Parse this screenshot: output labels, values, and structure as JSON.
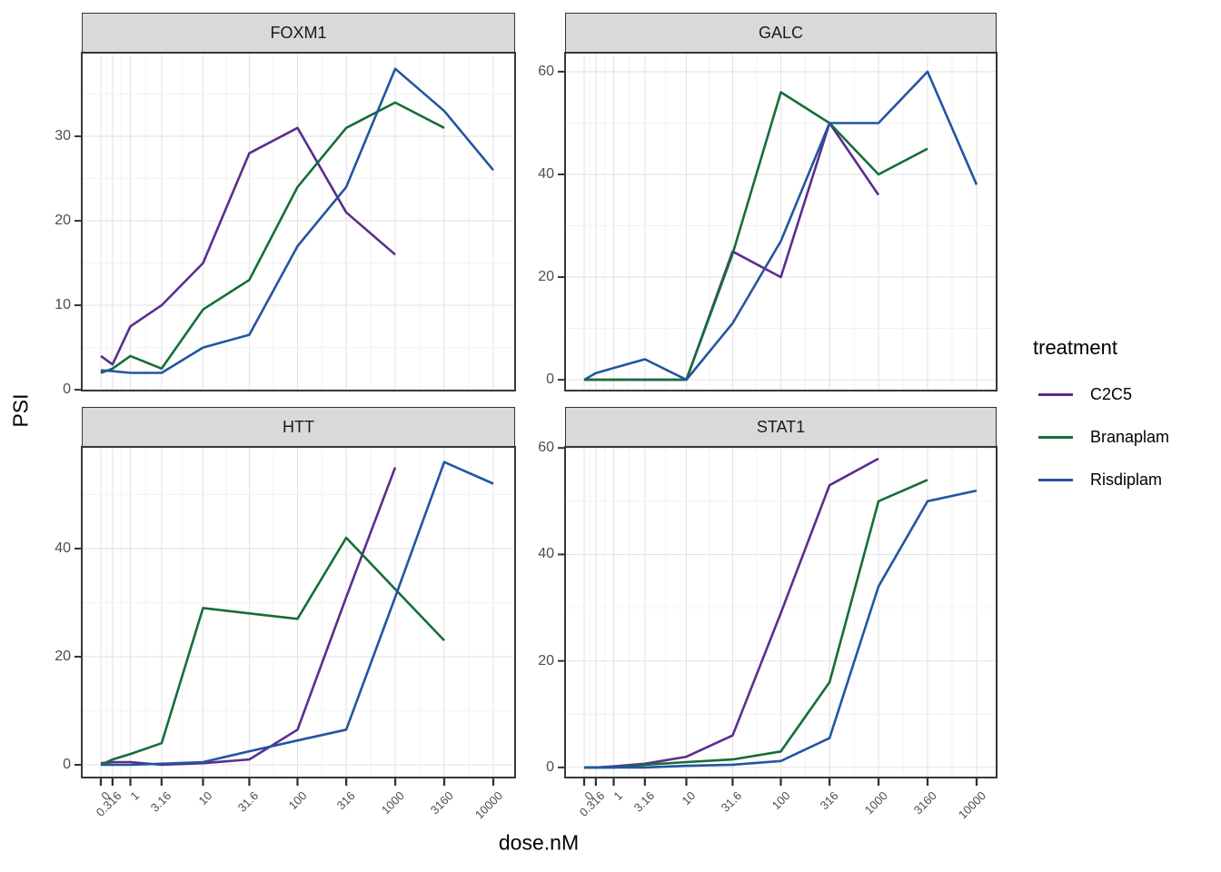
{
  "chart_data": {
    "type": "line",
    "facet_by": "gene",
    "x_transform": "log10(dose+1)",
    "xlabel": "dose.nM",
    "ylabel": "PSI",
    "x_tick_labels": [
      "0",
      "0.316",
      "1",
      "3.16",
      "10",
      "31.6",
      "100",
      "316",
      "1000",
      "3160",
      "10000"
    ],
    "x_tick_doses": [
      0,
      0.316,
      1,
      3.16,
      10,
      31.6,
      100,
      316,
      1000,
      3160,
      10000
    ],
    "grid": "on",
    "legend": {
      "title": "treatment",
      "position": "right",
      "items": [
        {
          "label": "C2C5",
          "color": "#5C2D8F"
        },
        {
          "label": "Branaplam",
          "color": "#156E38"
        },
        {
          "label": "Risdiplam",
          "color": "#2355A0"
        }
      ]
    },
    "panels": [
      {
        "title": "FOXM1",
        "ylim": [
          -0.1,
          39.9
        ],
        "yticks": [
          0,
          10,
          20,
          30
        ],
        "yminor": [
          5,
          15,
          25,
          35
        ],
        "series": [
          {
            "name": "C2C5",
            "color": "#5C2D8F",
            "doses": [
              0,
              0.316,
              1,
              3.16,
              10,
              31.6,
              100,
              316,
              1000
            ],
            "values": [
              4,
              3,
              7.5,
              10,
              15,
              28,
              31,
              21,
              16
            ]
          },
          {
            "name": "Branaplam",
            "color": "#156E38",
            "doses": [
              0,
              0.316,
              1,
              3.16,
              10,
              31.6,
              100,
              316,
              1000,
              3160
            ],
            "values": [
              2,
              2.5,
              4,
              2.5,
              9.5,
              13,
              24,
              31,
              34,
              31
            ]
          },
          {
            "name": "Risdiplam",
            "color": "#2355A0",
            "doses": [
              0,
              0.316,
              1,
              3.16,
              10,
              31.6,
              100,
              316,
              1000,
              3160,
              10000
            ],
            "values": [
              2.3,
              2.2,
              2,
              2,
              5,
              6.5,
              17,
              24,
              38,
              33,
              26
            ]
          }
        ]
      },
      {
        "title": "GALC",
        "ylim": [
          -2.1,
          63.7
        ],
        "yticks": [
          0,
          20,
          40,
          60
        ],
        "yminor": [
          10,
          30,
          50
        ],
        "series": [
          {
            "name": "C2C5",
            "color": "#5C2D8F",
            "doses": [
              0,
              0.316,
              1,
              3.16,
              10,
              31.6,
              100,
              316,
              1000
            ],
            "values": [
              0,
              0,
              0,
              0,
              0,
              25,
              20,
              50,
              36
            ]
          },
          {
            "name": "Branaplam",
            "color": "#156E38",
            "doses": [
              0,
              0.316,
              1,
              3.16,
              10,
              31.6,
              100,
              316,
              1000,
              3160
            ],
            "values": [
              0,
              0,
              0,
              0,
              0,
              24.5,
              56,
              50,
              40,
              45
            ]
          },
          {
            "name": "Risdiplam",
            "color": "#2355A0",
            "doses": [
              0,
              0.316,
              1,
              3.16,
              10,
              31.6,
              100,
              316,
              1000,
              3160,
              10000
            ],
            "values": [
              0,
              1.3,
              2.3,
              4,
              0,
              11,
              27,
              50,
              50,
              60,
              38
            ]
          }
        ]
      },
      {
        "title": "HTT",
        "ylim": [
          -2.35,
          58.8
        ],
        "yticks": [
          0,
          20,
          40
        ],
        "yminor": [
          10,
          30,
          50
        ],
        "series": [
          {
            "name": "C2C5",
            "color": "#5C2D8F",
            "doses": [
              0,
              0.316,
              1,
              3.16,
              10,
              31.6,
              100,
              316,
              1000
            ],
            "values": [
              0.3,
              0.5,
              0.5,
              0,
              0.3,
              1,
              6.5,
              31,
              55
            ]
          },
          {
            "name": "Branaplam",
            "color": "#156E38",
            "doses": [
              0,
              0.316,
              1,
              3.16,
              10,
              31.6,
              100,
              316,
              1000,
              3160
            ],
            "values": [
              0,
              1,
              2,
              4,
              29,
              28,
              27,
              42,
              32.5,
              23
            ]
          },
          {
            "name": "Risdiplam",
            "color": "#2355A0",
            "doses": [
              0,
              0.316,
              1,
              3.16,
              10,
              31.6,
              100,
              316,
              1000,
              3160,
              10000
            ],
            "values": [
              0,
              0,
              0,
              0.2,
              0.5,
              2.5,
              4.5,
              6.5,
              31,
              56,
              52
            ]
          }
        ]
      },
      {
        "title": "STAT1",
        "ylim": [
          -1.9,
          60.2
        ],
        "yticks": [
          0,
          20,
          40,
          60
        ],
        "yminor": [
          10,
          30,
          50
        ],
        "series": [
          {
            "name": "C2C5",
            "color": "#5C2D8F",
            "doses": [
              0,
              0.316,
              1,
              3.16,
              10,
              31.6,
              100,
              316,
              1000
            ],
            "values": [
              0,
              0,
              0.2,
              0.7,
              2,
              6,
              29,
              53,
              58
            ]
          },
          {
            "name": "Branaplam",
            "color": "#156E38",
            "doses": [
              0,
              0.316,
              1,
              3.16,
              10,
              31.6,
              100,
              316,
              1000,
              3160
            ],
            "values": [
              0,
              0,
              0,
              0.5,
              1,
              1.5,
              3,
              16,
              50,
              54
            ]
          },
          {
            "name": "Risdiplam",
            "color": "#2355A0",
            "doses": [
              0,
              0.316,
              1,
              3.16,
              10,
              31.6,
              100,
              316,
              1000,
              3160,
              10000
            ],
            "values": [
              0,
              0,
              0,
              0,
              0.3,
              0.5,
              1.2,
              5.5,
              34,
              50,
              52
            ]
          }
        ]
      }
    ],
    "style": {
      "panel_border_color": "#383838",
      "strip_bg": "#d9d9d9",
      "grid_major_color": "#e3e3e3",
      "grid_minor_color": "#f0f0f0",
      "tick_color": "#333333",
      "line_width": 2.6
    }
  }
}
